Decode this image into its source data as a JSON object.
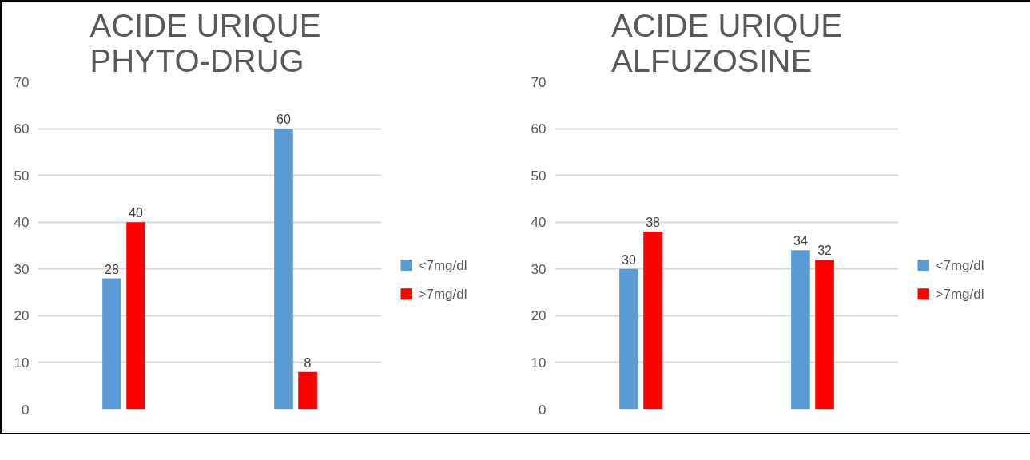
{
  "chart_data": [
    {
      "type": "bar",
      "title": "ACIDE  URIQUE\nPHYTO-DRUG",
      "categories": [
        null,
        null
      ],
      "series": [
        {
          "name": "<7mg/dl",
          "color": "#5b9bd5",
          "values": [
            28,
            60
          ]
        },
        {
          "name": ">7mg/dl",
          "color": "#ff0000",
          "values": [
            40,
            8
          ]
        }
      ],
      "ylim": [
        0,
        70
      ],
      "yticks": [
        0,
        10,
        20,
        30,
        40,
        50,
        60,
        70
      ],
      "grid": "y",
      "legend": "right",
      "data_labels": true
    },
    {
      "type": "bar",
      "title": "ACIDE URIQUE\nALFUZOSINE",
      "categories": [
        null,
        null
      ],
      "series": [
        {
          "name": "<7mg/dl",
          "color": "#5b9bd5",
          "values": [
            30,
            34
          ]
        },
        {
          "name": ">7mg/dl",
          "color": "#ff0000",
          "values": [
            38,
            32
          ]
        }
      ],
      "ylim": [
        0,
        70
      ],
      "yticks": [
        0,
        10,
        20,
        30,
        40,
        50,
        60,
        70
      ],
      "grid": "y",
      "legend": "right",
      "data_labels": true
    }
  ]
}
